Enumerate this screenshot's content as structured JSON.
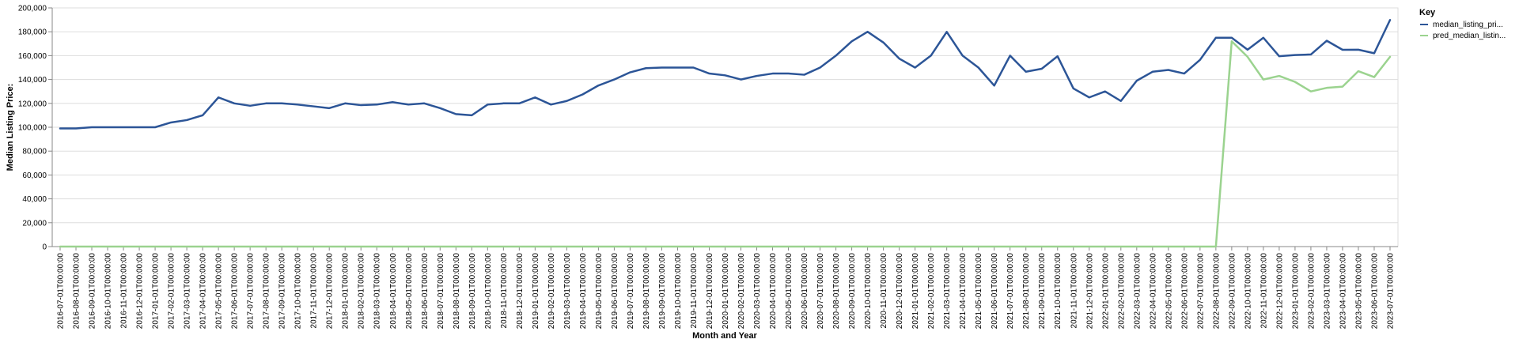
{
  "chart_data": {
    "type": "line",
    "xlabel": "Month and Year",
    "ylabel": "Median Listing Price:",
    "ylim": [
      0,
      200000
    ],
    "yticks": [
      0,
      20000,
      40000,
      60000,
      80000,
      100000,
      120000,
      140000,
      160000,
      180000,
      200000
    ],
    "ytick_labels": [
      "0",
      "20,000",
      "40,000",
      "60,000",
      "80,000",
      "100,000",
      "120,000",
      "140,000",
      "160,000",
      "180,000",
      "200,000"
    ],
    "grid": true,
    "legend": {
      "title": "Key",
      "position": "right"
    },
    "x": [
      "2016-07-01T00:00:00",
      "2016-08-01T00:00:00",
      "2016-09-01T00:00:00",
      "2016-10-01T00:00:00",
      "2016-11-01T00:00:00",
      "2016-12-01T00:00:00",
      "2017-01-01T00:00:00",
      "2017-02-01T00:00:00",
      "2017-03-01T00:00:00",
      "2017-04-01T00:00:00",
      "2017-05-01T00:00:00",
      "2017-06-01T00:00:00",
      "2017-07-01T00:00:00",
      "2017-08-01T00:00:00",
      "2017-09-01T00:00:00",
      "2017-10-01T00:00:00",
      "2017-11-01T00:00:00",
      "2017-12-01T00:00:00",
      "2018-01-01T00:00:00",
      "2018-02-01T00:00:00",
      "2018-03-01T00:00:00",
      "2018-04-01T00:00:00",
      "2018-05-01T00:00:00",
      "2018-06-01T00:00:00",
      "2018-07-01T00:00:00",
      "2018-08-01T00:00:00",
      "2018-09-01T00:00:00",
      "2018-10-01T00:00:00",
      "2018-11-01T00:00:00",
      "2018-12-01T00:00:00",
      "2019-01-01T00:00:00",
      "2019-02-01T00:00:00",
      "2019-03-01T00:00:00",
      "2019-04-01T00:00:00",
      "2019-05-01T00:00:00",
      "2019-06-01T00:00:00",
      "2019-07-01T00:00:00",
      "2019-08-01T00:00:00",
      "2019-09-01T00:00:00",
      "2019-10-01T00:00:00",
      "2019-11-01T00:00:00",
      "2019-12-01T00:00:00",
      "2020-01-01T00:00:00",
      "2020-02-01T00:00:00",
      "2020-03-01T00:00:00",
      "2020-04-01T00:00:00",
      "2020-05-01T00:00:00",
      "2020-06-01T00:00:00",
      "2020-07-01T00:00:00",
      "2020-08-01T00:00:00",
      "2020-09-01T00:00:00",
      "2020-10-01T00:00:00",
      "2020-11-01T00:00:00",
      "2020-12-01T00:00:00",
      "2021-01-01T00:00:00",
      "2021-02-01T00:00:00",
      "2021-03-01T00:00:00",
      "2021-04-01T00:00:00",
      "2021-05-01T00:00:00",
      "2021-06-01T00:00:00",
      "2021-07-01T00:00:00",
      "2021-08-01T00:00:00",
      "2021-09-01T00:00:00",
      "2021-10-01T00:00:00",
      "2021-11-01T00:00:00",
      "2021-12-01T00:00:00",
      "2022-01-01T00:00:00",
      "2022-02-01T00:00:00",
      "2022-03-01T00:00:00",
      "2022-04-01T00:00:00",
      "2022-05-01T00:00:00",
      "2022-06-01T00:00:00",
      "2022-07-01T00:00:00",
      "2022-08-01T00:00:00",
      "2022-09-01T00:00:00",
      "2022-10-01T00:00:00",
      "2022-11-01T00:00:00",
      "2022-12-01T00:00:00",
      "2023-01-01T00:00:00",
      "2023-02-01T00:00:00",
      "2023-03-01T00:00:00",
      "2023-04-01T00:00:00",
      "2023-05-01T00:00:00",
      "2023-06-01T00:00:00",
      "2023-07-01T00:00:00"
    ],
    "series": [
      {
        "name": "median_listing_pri...",
        "color": "#2c5597",
        "values": [
          99000,
          99000,
          100000,
          100000,
          100000,
          100000,
          100000,
          104000,
          106000,
          110000,
          125000,
          120000,
          118000,
          120000,
          120000,
          119000,
          117500,
          116000,
          120000,
          118500,
          119000,
          121000,
          119000,
          120000,
          116000,
          111000,
          110000,
          119000,
          120000,
          120000,
          125000,
          119000,
          122000,
          127500,
          135000,
          140000,
          146000,
          149500,
          150000,
          150000,
          150000,
          145000,
          143500,
          140000,
          143000,
          145000,
          145000,
          144000,
          150000,
          160000,
          172000,
          180000,
          171000,
          157500,
          150000,
          160000,
          179900,
          160000,
          150000,
          134900,
          160000,
          146500,
          149000,
          159500,
          132500,
          125000,
          130000,
          122000,
          139000,
          146500,
          148000,
          145000,
          156500,
          175000,
          175000,
          165000,
          175000,
          159500,
          160500,
          161000,
          172500,
          164900,
          165000,
          162000,
          189900
        ]
      },
      {
        "name": "pred_median_listin...",
        "color": "#9bd38f",
        "values": [
          0,
          0,
          0,
          0,
          0,
          0,
          0,
          0,
          0,
          0,
          0,
          0,
          0,
          0,
          0,
          0,
          0,
          0,
          0,
          0,
          0,
          0,
          0,
          0,
          0,
          0,
          0,
          0,
          0,
          0,
          0,
          0,
          0,
          0,
          0,
          0,
          0,
          0,
          0,
          0,
          0,
          0,
          0,
          0,
          0,
          0,
          0,
          0,
          0,
          0,
          0,
          0,
          0,
          0,
          0,
          0,
          0,
          0,
          0,
          0,
          0,
          0,
          0,
          0,
          0,
          0,
          0,
          0,
          0,
          0,
          0,
          0,
          0,
          0,
          172000,
          159000,
          140000,
          143000,
          138000,
          130000,
          133000,
          134000,
          147000,
          142000,
          159000
        ]
      }
    ]
  }
}
